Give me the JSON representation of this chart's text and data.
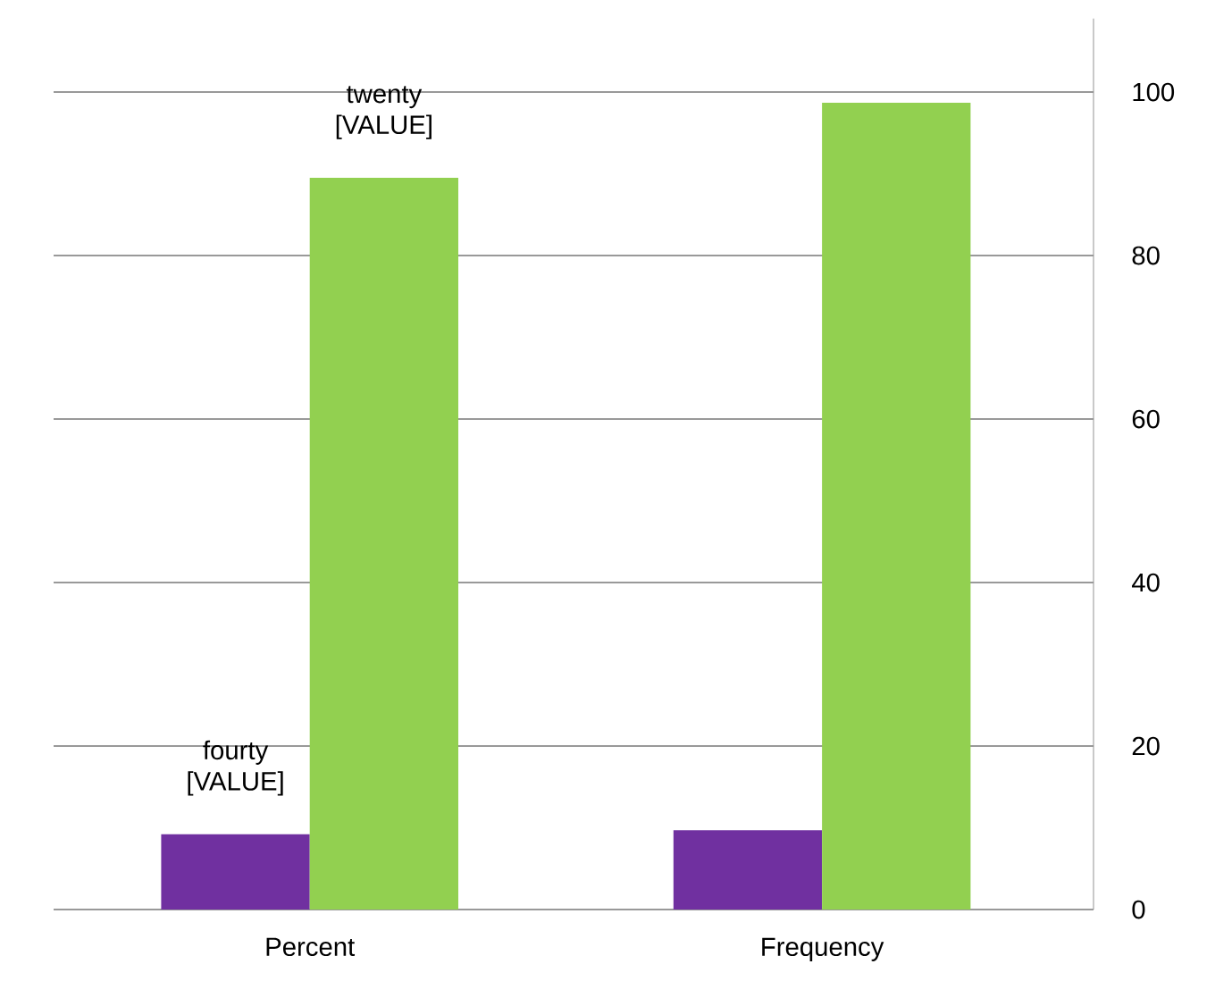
{
  "chart_data": {
    "type": "bar",
    "categories": [
      "Percent",
      "Frequency"
    ],
    "series": [
      {
        "color": "#7030a0",
        "values": [
          9.2,
          9.7
        ]
      },
      {
        "color": "#92d050",
        "values": [
          89.5,
          98.7
        ]
      }
    ],
    "ylim": [
      0,
      109
    ],
    "yticks": [
      0,
      20,
      40,
      60,
      80,
      100
    ],
    "grid": "y",
    "annotations": [
      {
        "text": "fourty [VALUE]",
        "x": "Percent",
        "y": 9.2
      },
      {
        "text": "twenty [VALUE]",
        "x": "Percent",
        "y": 89.5
      }
    ]
  }
}
